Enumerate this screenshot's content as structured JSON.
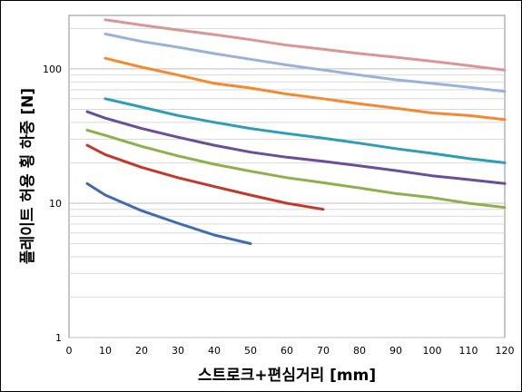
{
  "chart_data": {
    "type": "line",
    "title": "",
    "xlabel": "스트로크+편심거리 [mm]",
    "ylabel": "플레이트 허용 횡 하중 [N]",
    "xlim": [
      0,
      120
    ],
    "ylim": [
      1,
      250
    ],
    "yscale": "log",
    "grid": "horizontal major and minor",
    "legend": "none",
    "x_ticks": [
      0,
      10,
      20,
      30,
      40,
      50,
      60,
      70,
      80,
      90,
      100,
      110,
      120
    ],
    "y_ticks": [
      1,
      10,
      100
    ],
    "series": [
      {
        "color": "#3F6CAC",
        "x": [
          5,
          10,
          20,
          30,
          40,
          50
        ],
        "values": [
          14,
          11.5,
          8.8,
          7.1,
          5.8,
          5.0
        ]
      },
      {
        "color": "#C0392B",
        "x": [
          5,
          10,
          20,
          30,
          40,
          50,
          60,
          70
        ],
        "values": [
          27,
          23,
          18.5,
          15.5,
          13.3,
          11.5,
          10.0,
          9.0
        ]
      },
      {
        "color": "#8DB04A",
        "x": [
          5,
          10,
          20,
          30,
          40,
          50,
          60,
          70,
          80,
          90,
          100,
          110,
          120
        ],
        "values": [
          35,
          32,
          26.5,
          22.5,
          19.5,
          17.3,
          15.5,
          14.2,
          13.0,
          11.8,
          11.0,
          10.0,
          9.3
        ]
      },
      {
        "color": "#6A4E9A",
        "x": [
          5,
          10,
          20,
          30,
          40,
          50,
          60,
          70,
          80,
          90,
          100,
          110,
          120
        ],
        "values": [
          48,
          43,
          36,
          31,
          27,
          24,
          22,
          20.5,
          19,
          17.5,
          16,
          15,
          14
        ]
      },
      {
        "color": "#2E9DB5",
        "x": [
          10,
          20,
          30,
          40,
          50,
          60,
          70,
          80,
          90,
          100,
          110,
          120
        ],
        "values": [
          60,
          52,
          45,
          40,
          36,
          33,
          30.5,
          28,
          25.5,
          23.5,
          21.5,
          20
        ]
      },
      {
        "color": "#F28A30",
        "x": [
          10,
          20,
          30,
          40,
          50,
          60,
          70,
          80,
          90,
          100,
          110,
          120
        ],
        "values": [
          120,
          103,
          90,
          78,
          72,
          65,
          60,
          55,
          51,
          47,
          45,
          42
        ]
      },
      {
        "color": "#9AB2DA",
        "x": [
          10,
          20,
          30,
          40,
          50,
          60,
          70,
          80,
          90,
          100,
          110,
          120
        ],
        "values": [
          182,
          160,
          145,
          130,
          118,
          107,
          98,
          90,
          83,
          78,
          73,
          68
        ]
      },
      {
        "color": "#D99694",
        "x": [
          10,
          20,
          30,
          40,
          50,
          60,
          70,
          80,
          90,
          100,
          110,
          120
        ],
        "values": [
          232,
          212,
          195,
          180,
          165,
          150,
          140,
          130,
          122,
          114,
          106,
          98
        ]
      }
    ]
  }
}
